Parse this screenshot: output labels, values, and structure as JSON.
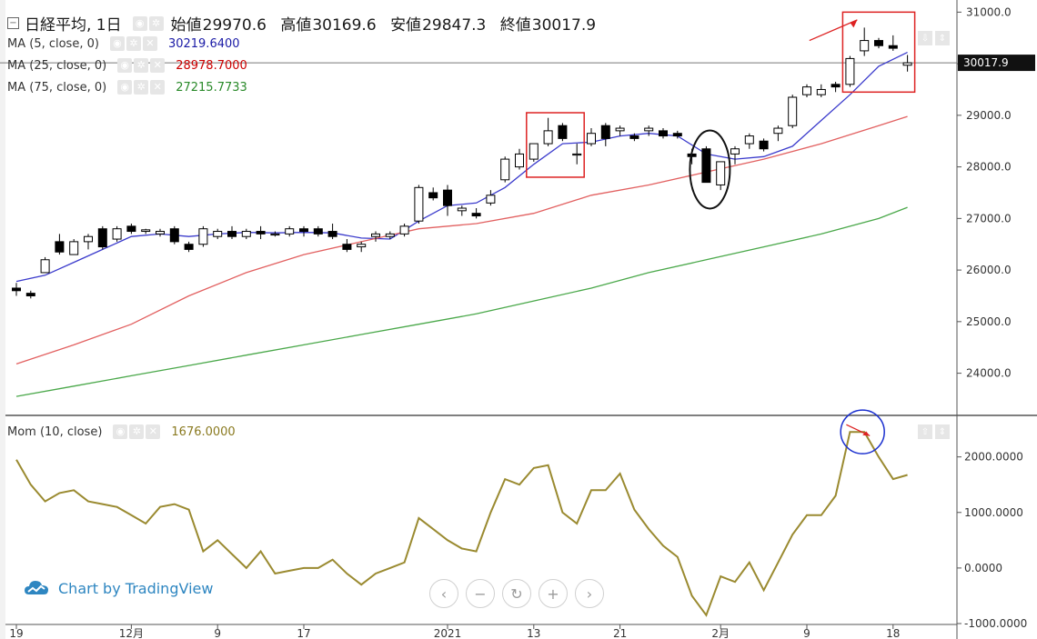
{
  "legend": {
    "symbol_label": "日経平均, 1日",
    "ohlc": [
      {
        "key": "始値",
        "value": "29970.6"
      },
      {
        "key": "高値",
        "value": "30169.6"
      },
      {
        "key": "安値",
        "value": "29847.3"
      },
      {
        "key": "終値",
        "value": "30017.9"
      }
    ],
    "indicators": [
      {
        "label": "MA (5, close, 0)",
        "value": "30219.6400",
        "color": "#1a1aa6"
      },
      {
        "label": "MA (25, close, 0)",
        "value": "28978.7000",
        "color": "#cc0000"
      },
      {
        "label": "MA (75, close, 0)",
        "value": "27215.7733",
        "color": "#2a8a2a"
      }
    ],
    "momentum": {
      "label": "Mom (10, close)",
      "value": "1676.0000",
      "color": "#8a7a20"
    }
  },
  "watermark": {
    "text": "Chart by TradingView"
  },
  "price_axis": {
    "last_price_label": "30017.9"
  },
  "icons": {
    "collapse": "minus-square-icon",
    "visibility": "eye-icon",
    "settings": "gear-icon",
    "remove": "close-icon",
    "logo": "tradingview-cloud-icon"
  },
  "nav_buttons": [
    {
      "name": "scroll-left",
      "icon": "‹"
    },
    {
      "name": "zoom-out",
      "icon": "−"
    },
    {
      "name": "reset",
      "icon": "↻"
    },
    {
      "name": "zoom-in",
      "icon": "+"
    },
    {
      "name": "scroll-right",
      "icon": "›"
    }
  ],
  "chart_data": [
    {
      "type": "candlestick",
      "title": "日経平均, 1日",
      "ylim": [
        23200,
        31200
      ],
      "y_ticks": [
        24000,
        25000,
        26000,
        27000,
        28000,
        29000,
        30000,
        31000
      ],
      "y_tick_labels": [
        "24000.0",
        "25000.0",
        "26000.0",
        "27000.0",
        "28000.0",
        "29000.0",
        "30000.0",
        "31000.0"
      ],
      "x_tick_labels": [
        {
          "label": "19",
          "index": 0
        },
        {
          "label": "12月",
          "index": 8
        },
        {
          "label": "9",
          "index": 14
        },
        {
          "label": "17",
          "index": 20
        },
        {
          "label": "2021",
          "index": 30
        },
        {
          "label": "13",
          "index": 36
        },
        {
          "label": "21",
          "index": 42
        },
        {
          "label": "2月",
          "index": 49
        },
        {
          "label": "9",
          "index": 55
        },
        {
          "label": "18",
          "index": 61
        }
      ],
      "candles": [
        {
          "o": 25650,
          "h": 25750,
          "l": 25500,
          "c": 25600
        },
        {
          "o": 25550,
          "h": 25600,
          "l": 25450,
          "c": 25500
        },
        {
          "o": 25950,
          "h": 26250,
          "l": 25950,
          "c": 26200
        },
        {
          "o": 26550,
          "h": 26700,
          "l": 26300,
          "c": 26350
        },
        {
          "o": 26300,
          "h": 26600,
          "l": 26300,
          "c": 26550
        },
        {
          "o": 26550,
          "h": 26700,
          "l": 26400,
          "c": 26650
        },
        {
          "o": 26800,
          "h": 26850,
          "l": 26400,
          "c": 26450
        },
        {
          "o": 26600,
          "h": 26850,
          "l": 26550,
          "c": 26800
        },
        {
          "o": 26850,
          "h": 26900,
          "l": 26700,
          "c": 26750
        },
        {
          "o": 26750,
          "h": 26800,
          "l": 26700,
          "c": 26780
        },
        {
          "o": 26700,
          "h": 26800,
          "l": 26650,
          "c": 26750
        },
        {
          "o": 26800,
          "h": 26850,
          "l": 26500,
          "c": 26550
        },
        {
          "o": 26500,
          "h": 26550,
          "l": 26350,
          "c": 26400
        },
        {
          "o": 26500,
          "h": 26850,
          "l": 26450,
          "c": 26800
        },
        {
          "o": 26650,
          "h": 26800,
          "l": 26600,
          "c": 26750
        },
        {
          "o": 26750,
          "h": 26850,
          "l": 26600,
          "c": 26650
        },
        {
          "o": 26650,
          "h": 26800,
          "l": 26600,
          "c": 26750
        },
        {
          "o": 26750,
          "h": 26850,
          "l": 26600,
          "c": 26700
        },
        {
          "o": 26700,
          "h": 26750,
          "l": 26650,
          "c": 26700
        },
        {
          "o": 26700,
          "h": 26850,
          "l": 26650,
          "c": 26800
        },
        {
          "o": 26800,
          "h": 26850,
          "l": 26650,
          "c": 26750
        },
        {
          "o": 26800,
          "h": 26850,
          "l": 26650,
          "c": 26700
        },
        {
          "o": 26750,
          "h": 26900,
          "l": 26600,
          "c": 26650
        },
        {
          "o": 26500,
          "h": 26600,
          "l": 26350,
          "c": 26400
        },
        {
          "o": 26450,
          "h": 26550,
          "l": 26350,
          "c": 26500
        },
        {
          "o": 26650,
          "h": 26750,
          "l": 26550,
          "c": 26700
        },
        {
          "o": 26650,
          "h": 26750,
          "l": 26600,
          "c": 26700
        },
        {
          "o": 26700,
          "h": 26900,
          "l": 26650,
          "c": 26850
        },
        {
          "o": 26950,
          "h": 27650,
          "l": 26900,
          "c": 27600
        },
        {
          "o": 27500,
          "h": 27600,
          "l": 27350,
          "c": 27400
        },
        {
          "o": 27550,
          "h": 27650,
          "l": 27050,
          "c": 27250
        },
        {
          "o": 27150,
          "h": 27250,
          "l": 27050,
          "c": 27200
        },
        {
          "o": 27100,
          "h": 27200,
          "l": 27000,
          "c": 27050
        },
        {
          "o": 27300,
          "h": 27550,
          "l": 27250,
          "c": 27450
        },
        {
          "o": 27750,
          "h": 28200,
          "l": 27700,
          "c": 28150
        },
        {
          "o": 28000,
          "h": 28350,
          "l": 27950,
          "c": 28250
        },
        {
          "o": 28150,
          "h": 28450,
          "l": 28100,
          "c": 28450
        },
        {
          "o": 28450,
          "h": 28950,
          "l": 28400,
          "c": 28700
        },
        {
          "o": 28800,
          "h": 28850,
          "l": 28500,
          "c": 28550
        },
        {
          "o": 28250,
          "h": 28450,
          "l": 28050,
          "c": 28250
        },
        {
          "o": 28450,
          "h": 28750,
          "l": 28400,
          "c": 28650
        },
        {
          "o": 28800,
          "h": 28850,
          "l": 28400,
          "c": 28550
        },
        {
          "o": 28700,
          "h": 28800,
          "l": 28600,
          "c": 28750
        },
        {
          "o": 28600,
          "h": 28650,
          "l": 28500,
          "c": 28550
        },
        {
          "o": 28700,
          "h": 28800,
          "l": 28600,
          "c": 28750
        },
        {
          "o": 28700,
          "h": 28750,
          "l": 28550,
          "c": 28600
        },
        {
          "o": 28650,
          "h": 28700,
          "l": 28550,
          "c": 28600
        },
        {
          "o": 28250,
          "h": 28350,
          "l": 28050,
          "c": 28200
        },
        {
          "o": 28350,
          "h": 28400,
          "l": 27700,
          "c": 27700
        },
        {
          "o": 27650,
          "h": 28100,
          "l": 27550,
          "c": 28100
        },
        {
          "o": 28250,
          "h": 28400,
          "l": 28050,
          "c": 28350
        },
        {
          "o": 28450,
          "h": 28650,
          "l": 28350,
          "c": 28600
        },
        {
          "o": 28500,
          "h": 28550,
          "l": 28300,
          "c": 28350
        },
        {
          "o": 28650,
          "h": 28800,
          "l": 28500,
          "c": 28750
        },
        {
          "o": 28800,
          "h": 29400,
          "l": 28750,
          "c": 29350
        },
        {
          "o": 29400,
          "h": 29600,
          "l": 29350,
          "c": 29550
        },
        {
          "o": 29400,
          "h": 29600,
          "l": 29350,
          "c": 29500
        },
        {
          "o": 29600,
          "h": 29650,
          "l": 29450,
          "c": 29550
        },
        {
          "o": 29600,
          "h": 30150,
          "l": 29550,
          "c": 30100
        },
        {
          "o": 30250,
          "h": 30700,
          "l": 30150,
          "c": 30450
        },
        {
          "o": 30450,
          "h": 30500,
          "l": 30300,
          "c": 30350
        },
        {
          "o": 30350,
          "h": 30550,
          "l": 30250,
          "c": 30300
        },
        {
          "o": 29970.6,
          "h": 30169.6,
          "l": 29847.3,
          "c": 30017.9
        }
      ],
      "ma": [
        {
          "name": "MA (5, close, 0)",
          "color": "#3b3bcc",
          "points": [
            [
              0,
              25780
            ],
            [
              2,
              25900
            ],
            [
              4,
              26150
            ],
            [
              6,
              26400
            ],
            [
              8,
              26650
            ],
            [
              10,
              26700
            ],
            [
              12,
              26650
            ],
            [
              14,
              26700
            ],
            [
              16,
              26730
            ],
            [
              18,
              26720
            ],
            [
              20,
              26730
            ],
            [
              22,
              26720
            ],
            [
              24,
              26620
            ],
            [
              26,
              26600
            ],
            [
              28,
              26950
            ],
            [
              30,
              27250
            ],
            [
              32,
              27300
            ],
            [
              34,
              27600
            ],
            [
              36,
              28050
            ],
            [
              38,
              28450
            ],
            [
              40,
              28480
            ],
            [
              42,
              28600
            ],
            [
              44,
              28650
            ],
            [
              46,
              28600
            ],
            [
              48,
              28250
            ],
            [
              50,
              28150
            ],
            [
              52,
              28200
            ],
            [
              54,
              28400
            ],
            [
              56,
              28900
            ],
            [
              58,
              29400
            ],
            [
              60,
              29950
            ],
            [
              62,
              30219.64
            ]
          ]
        },
        {
          "name": "MA (25, close, 0)",
          "color": "#e26060",
          "points": [
            [
              0,
              24180
            ],
            [
              4,
              24550
            ],
            [
              8,
              24950
            ],
            [
              12,
              25500
            ],
            [
              16,
              25950
            ],
            [
              20,
              26300
            ],
            [
              24,
              26550
            ],
            [
              28,
              26800
            ],
            [
              32,
              26900
            ],
            [
              36,
              27100
            ],
            [
              40,
              27450
            ],
            [
              44,
              27650
            ],
            [
              48,
              27900
            ],
            [
              52,
              28150
            ],
            [
              56,
              28450
            ],
            [
              60,
              28800
            ],
            [
              62,
              28978.7
            ]
          ]
        },
        {
          "name": "MA (75, close, 0)",
          "color": "#4aa84a",
          "points": [
            [
              0,
              23550
            ],
            [
              4,
              23750
            ],
            [
              8,
              23950
            ],
            [
              12,
              24150
            ],
            [
              16,
              24350
            ],
            [
              20,
              24550
            ],
            [
              24,
              24750
            ],
            [
              28,
              24950
            ],
            [
              32,
              25150
            ],
            [
              36,
              25400
            ],
            [
              40,
              25650
            ],
            [
              44,
              25950
            ],
            [
              48,
              26200
            ],
            [
              52,
              26450
            ],
            [
              56,
              26700
            ],
            [
              60,
              27000
            ],
            [
              62,
              27215.77
            ]
          ]
        }
      ]
    },
    {
      "type": "line",
      "title": "Mom (10, close)",
      "ylim": [
        -1000,
        2600
      ],
      "y_ticks": [
        -1000,
        0,
        1000,
        2000
      ],
      "y_tick_labels": [
        "-1000.0000",
        "0.0000",
        "1000.0000",
        "2000.0000"
      ],
      "series": [
        {
          "name": "Mom (10, close)",
          "color": "#9a8a30",
          "values": [
            1950,
            1500,
            1200,
            1350,
            1400,
            1200,
            1150,
            1100,
            950,
            800,
            1100,
            1150,
            1050,
            300,
            500,
            250,
            0,
            300,
            -100,
            -50,
            0,
            0,
            150,
            -100,
            -300,
            -100,
            0,
            100,
            900,
            700,
            500,
            350,
            300,
            1000,
            1600,
            1500,
            1800,
            1850,
            1000,
            800,
            1400,
            1400,
            1700,
            1050,
            700,
            400,
            200,
            -500,
            -850,
            -150,
            -250,
            100,
            -400,
            100,
            600,
            950,
            950,
            1300,
            2450,
            2450,
            2000,
            1600,
            1676
          ]
        }
      ]
    }
  ]
}
